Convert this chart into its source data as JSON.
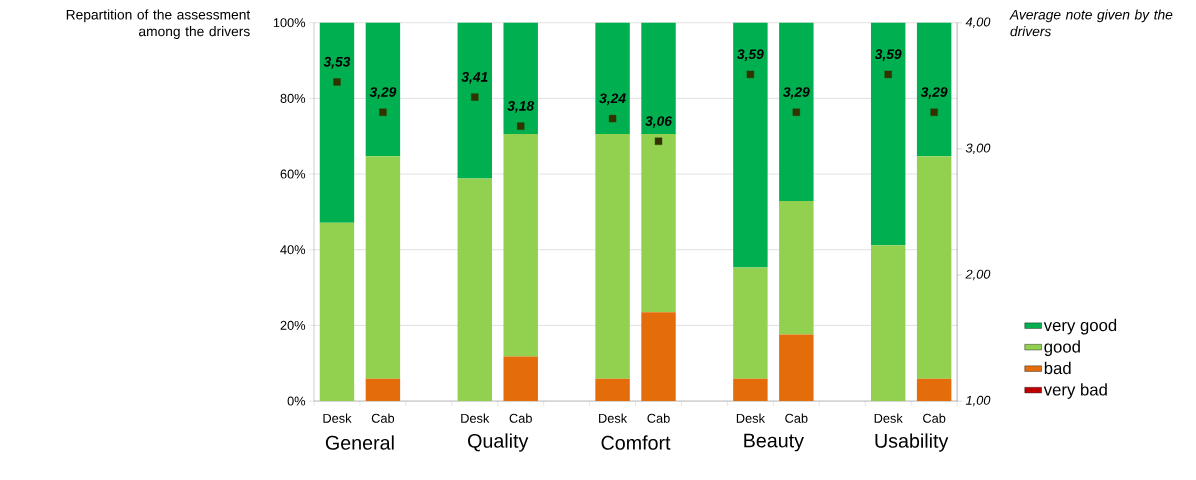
{
  "chart_data": {
    "type": "bar",
    "stacked": true,
    "ylabel": "Repartition of the assessment among the drivers",
    "y2label": "Average note given by the drivers",
    "categories": [
      "Desk",
      "Cab",
      null,
      "Desk",
      "Cab",
      null,
      "Desk",
      "Cab",
      null,
      "Desk",
      "Cab",
      null,
      "Desk",
      "Cab"
    ],
    "annotations": [
      "General",
      "Quality",
      "Comfort",
      "Beauty",
      "Usability"
    ],
    "series": [
      {
        "name": "very bad",
        "color": "#c00000",
        "values": [
          0,
          0,
          null,
          0,
          0,
          null,
          0,
          0,
          null,
          0,
          0,
          null,
          0,
          0
        ]
      },
      {
        "name": "bad",
        "color": "#e46c0a",
        "values": [
          0,
          5.9,
          null,
          0,
          11.8,
          null,
          5.9,
          23.5,
          null,
          5.9,
          17.6,
          null,
          0,
          5.9
        ]
      },
      {
        "name": "good",
        "color": "#92d050",
        "values": [
          47.1,
          58.8,
          null,
          58.8,
          58.8,
          null,
          64.7,
          47.1,
          null,
          29.4,
          35.3,
          null,
          41.2,
          58.8
        ]
      },
      {
        "name": "very good",
        "color": "#00b050",
        "values": [
          52.9,
          35.3,
          null,
          41.2,
          29.4,
          null,
          29.4,
          29.4,
          null,
          64.7,
          47.1,
          null,
          58.8,
          35.3
        ]
      },
      {
        "type": "scatter",
        "axis": "y2",
        "marker": "square",
        "color": "#333300",
        "values": [
          3.53,
          3.29,
          null,
          3.41,
          3.18,
          null,
          3.24,
          3.06,
          null,
          3.59,
          3.29,
          null,
          3.59,
          3.29
        ],
        "value_labels": [
          "3,53",
          "3,29",
          null,
          "3,41",
          "3,18",
          null,
          "3,24",
          "3,06",
          null,
          "3,59",
          "3,29",
          null,
          "3,59",
          "3,29"
        ]
      }
    ],
    "ylim": [
      0,
      100
    ],
    "yticks": [
      {
        "value": 0,
        "label": "0%"
      },
      {
        "value": 20,
        "label": "20%"
      },
      {
        "value": 40,
        "label": "40%"
      },
      {
        "value": 60,
        "label": "60%"
      },
      {
        "value": 80,
        "label": "80%"
      },
      {
        "value": 100,
        "label": "100%"
      }
    ],
    "y2lim": [
      1,
      4
    ],
    "y2ticks": [
      {
        "value": 1,
        "label": "1,00"
      },
      {
        "value": 2,
        "label": "2,00"
      },
      {
        "value": 3,
        "label": "3,00"
      },
      {
        "value": 4,
        "label": "4,00"
      }
    ],
    "grid": "y",
    "legend": "bottom right"
  }
}
